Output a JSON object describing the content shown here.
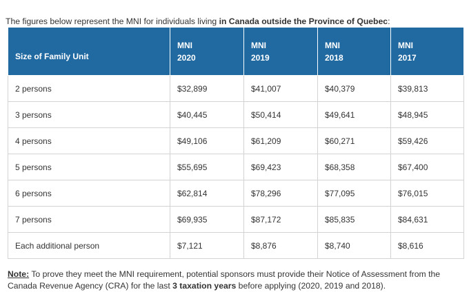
{
  "intro": {
    "prefix": "The figures below represent the MNI for individuals living ",
    "bold": "in Canada outside the Province of Quebec",
    "suffix": ":"
  },
  "table": {
    "header": {
      "first": "Size of Family Unit",
      "years": [
        {
          "line1": "MNI",
          "line2": "2020"
        },
        {
          "line1": "MNI",
          "line2": "2019"
        },
        {
          "line1": "MNI",
          "line2": "2018"
        },
        {
          "line1": "MNI",
          "line2": "2017"
        }
      ]
    },
    "rows": [
      {
        "size": "2 persons",
        "values": [
          "$32,899",
          "$41,007",
          "$40,379",
          "$39,813"
        ]
      },
      {
        "size": "3 persons",
        "values": [
          "$40,445",
          "$50,414",
          "$49,641",
          "$48,945"
        ]
      },
      {
        "size": "4 persons",
        "values": [
          "$49,106",
          "$61,209",
          "$60,271",
          "$59,426"
        ]
      },
      {
        "size": "5 persons",
        "values": [
          "$55,695",
          "$69,423",
          "$68,358",
          "$67,400"
        ]
      },
      {
        "size": "6 persons",
        "values": [
          "$62,814",
          "$78,296",
          "$77,095",
          "$76,015"
        ]
      },
      {
        "size": "7 persons",
        "values": [
          "$69,935",
          "$87,172",
          "$85,835",
          "$84,631"
        ]
      },
      {
        "size": "Each additional person",
        "values": [
          "$7,121",
          "$8,876",
          "$8,740",
          "$8,616"
        ]
      }
    ]
  },
  "note": {
    "label": "Note:",
    "text1": " To prove they meet the MNI requirement, potential sponsors must provide their Notice of Assessment from the Canada Revenue Agency (CRA) for the last ",
    "bold": "3 taxation years",
    "text2": " before applying (2020, 2019 and 2018)."
  },
  "colors": {
    "header_bg": "#2169a1",
    "header_text": "#ffffff",
    "border": "#d3d3d3",
    "text": "#333333"
  }
}
